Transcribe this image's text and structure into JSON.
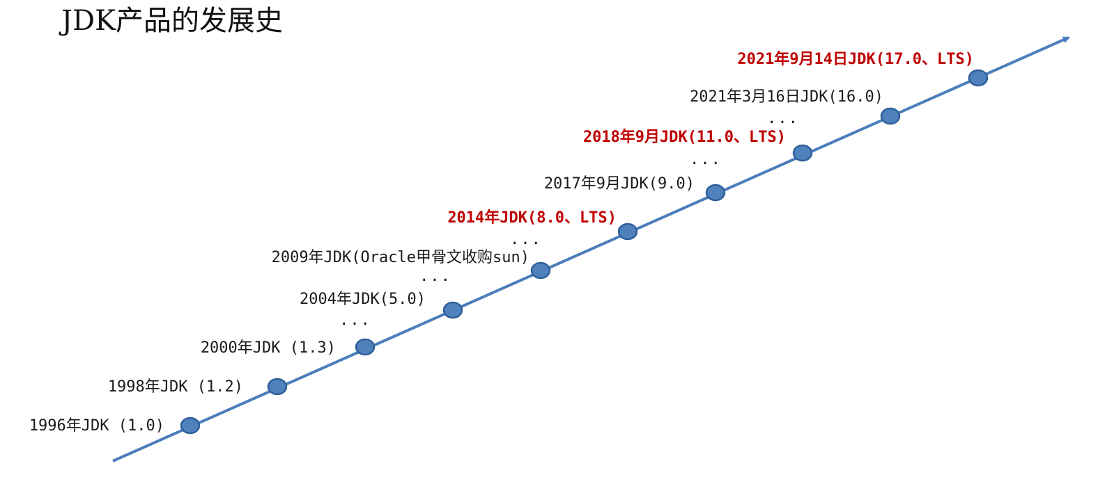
{
  "title": "JDK产品的发展史",
  "colors": {
    "axis": "#4a7ebb",
    "node_fill": "#4f81bd",
    "node_stroke": "#2f5f9a",
    "lts_text": "#c00000",
    "normal_text": "#1a1a1a"
  },
  "milestones": [
    {
      "label": "1996年JDK (1.0)",
      "lts": false
    },
    {
      "label": "1998年JDK (1.2)",
      "lts": false
    },
    {
      "label": "2000年JDK (1.3)",
      "lts": false
    },
    {
      "label": "2004年JDK(5.0)",
      "lts": false
    },
    {
      "label": "2009年JDK(Oracle甲骨文收购sun)",
      "lts": false
    },
    {
      "label": "2014年JDK(8.0、LTS)",
      "lts": true
    },
    {
      "label": "2017年9月JDK(9.0)",
      "lts": false
    },
    {
      "label": "2018年9月JDK(11.0、LTS)",
      "lts": true
    },
    {
      "label": "2021年3月16日JDK(16.0)",
      "lts": false
    },
    {
      "label": "2021年9月14日JDK(17.0、LTS)",
      "lts": true
    }
  ],
  "ellipses": [
    "...",
    "...",
    "...",
    "...",
    "..."
  ]
}
